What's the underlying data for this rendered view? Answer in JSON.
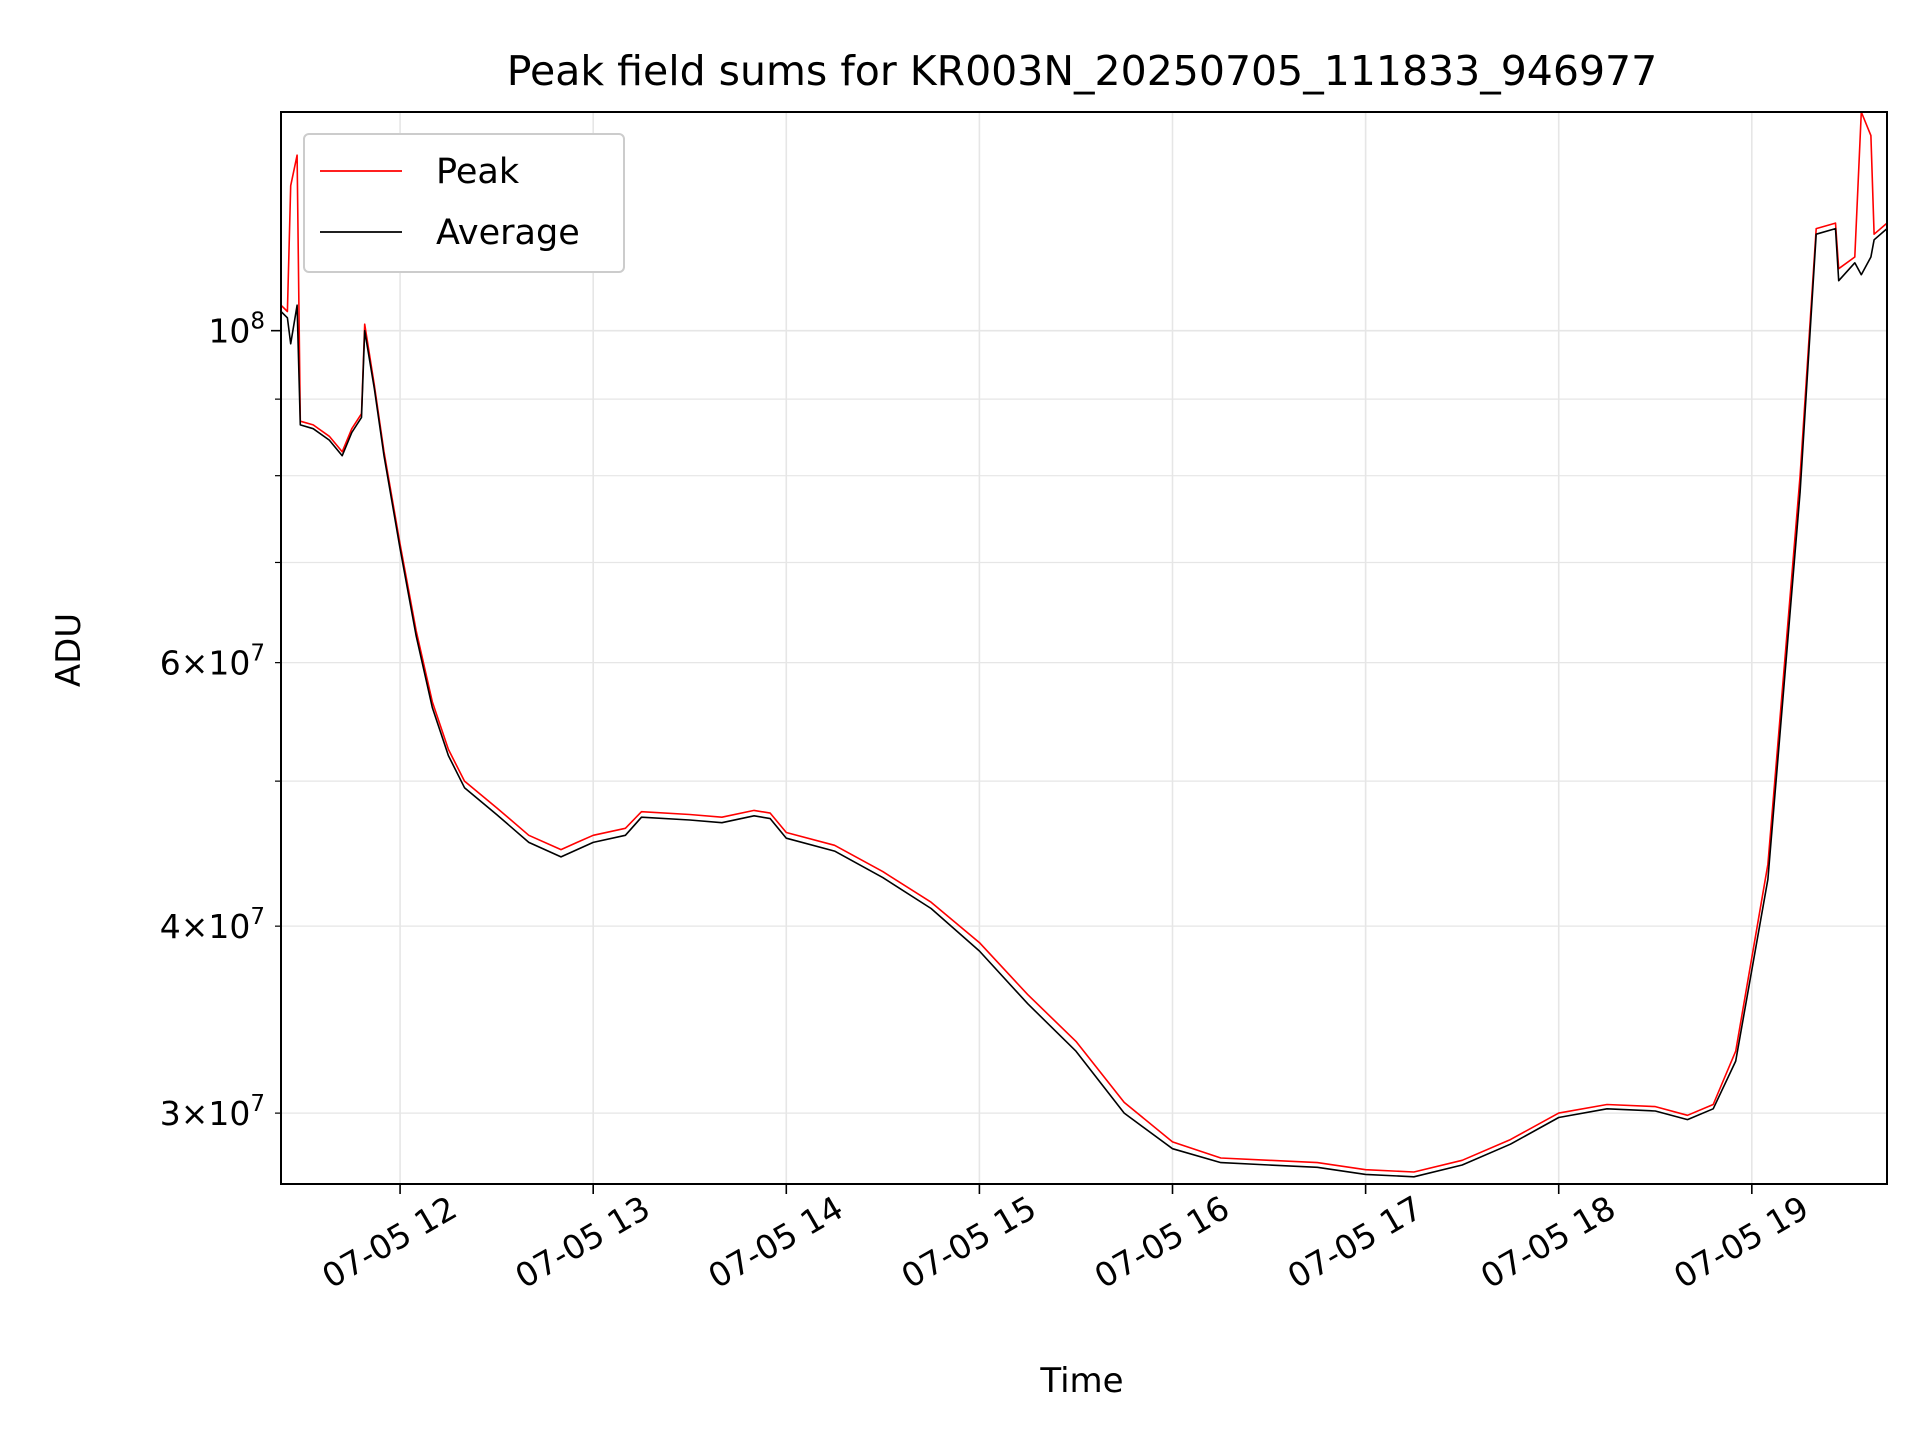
{
  "chart_data": {
    "type": "line",
    "title": "Peak field sums for KR003N_20250705_111833_946977",
    "xlabel": "Time",
    "ylabel": "ADU",
    "yscale": "log",
    "grid": true,
    "legend_position": "top-left",
    "xlim": [
      "2025-07-05 11:23",
      "2025-07-05 19:42"
    ],
    "ylim": [
      26900000,
      140000000
    ],
    "x_ticks": [
      {
        "value": "2025-07-05 12:00",
        "label": "07-05 12"
      },
      {
        "value": "2025-07-05 13:00",
        "label": "07-05 13"
      },
      {
        "value": "2025-07-05 14:00",
        "label": "07-05 14"
      },
      {
        "value": "2025-07-05 15:00",
        "label": "07-05 15"
      },
      {
        "value": "2025-07-05 16:00",
        "label": "07-05 16"
      },
      {
        "value": "2025-07-05 17:00",
        "label": "07-05 17"
      },
      {
        "value": "2025-07-05 18:00",
        "label": "07-05 18"
      },
      {
        "value": "2025-07-05 19:00",
        "label": "07-05 19"
      }
    ],
    "y_major_ticks": [
      {
        "value": 100000000,
        "base": "10",
        "exp": "8"
      }
    ],
    "y_minor_ticks": [
      {
        "value": 30000000,
        "coef": "3",
        "times": "×",
        "base": "10",
        "exp": "7"
      },
      {
        "value": 40000000,
        "coef": "4",
        "times": "×",
        "base": "10",
        "exp": "7"
      },
      {
        "value": 60000000,
        "coef": "6",
        "times": "×",
        "base": "10",
        "exp": "7"
      },
      {
        "value": 50000000
      },
      {
        "value": 70000000
      },
      {
        "value": 80000000
      },
      {
        "value": 90000000
      }
    ],
    "series": [
      {
        "name": "Peak",
        "color": "#ff0000",
        "points": [
          [
            "2025-07-05 11:23",
            104000000
          ],
          [
            "2025-07-05 11:25",
            103000000
          ],
          [
            "2025-07-05 11:26",
            125000000
          ],
          [
            "2025-07-05 11:28",
            131000000
          ],
          [
            "2025-07-05 11:29",
            87000000
          ],
          [
            "2025-07-05 11:33",
            86500000
          ],
          [
            "2025-07-05 11:38",
            85000000
          ],
          [
            "2025-07-05 11:42",
            83000000
          ],
          [
            "2025-07-05 11:45",
            86000000
          ],
          [
            "2025-07-05 11:48",
            88000000
          ],
          [
            "2025-07-05 11:49",
            101000000
          ],
          [
            "2025-07-05 11:52",
            92000000
          ],
          [
            "2025-07-05 11:55",
            83000000
          ],
          [
            "2025-07-05 12:00",
            72000000
          ],
          [
            "2025-07-05 12:05",
            63000000
          ],
          [
            "2025-07-05 12:10",
            56500000
          ],
          [
            "2025-07-05 12:15",
            52500000
          ],
          [
            "2025-07-05 12:20",
            50000000
          ],
          [
            "2025-07-05 12:30",
            48000000
          ],
          [
            "2025-07-05 12:40",
            46000000
          ],
          [
            "2025-07-05 12:50",
            45000000
          ],
          [
            "2025-07-05 12:55",
            45500000
          ],
          [
            "2025-07-05 13:00",
            46000000
          ],
          [
            "2025-07-05 13:10",
            46500000
          ],
          [
            "2025-07-05 13:15",
            47700000
          ],
          [
            "2025-07-05 13:30",
            47500000
          ],
          [
            "2025-07-05 13:40",
            47300000
          ],
          [
            "2025-07-05 13:50",
            47800000
          ],
          [
            "2025-07-05 13:55",
            47600000
          ],
          [
            "2025-07-05 14:00",
            46200000
          ],
          [
            "2025-07-05 14:15",
            45300000
          ],
          [
            "2025-07-05 14:30",
            43500000
          ],
          [
            "2025-07-05 14:45",
            41500000
          ],
          [
            "2025-07-05 15:00",
            39000000
          ],
          [
            "2025-07-05 15:15",
            36000000
          ],
          [
            "2025-07-05 15:30",
            33500000
          ],
          [
            "2025-07-05 15:45",
            30500000
          ],
          [
            "2025-07-05 16:00",
            28700000
          ],
          [
            "2025-07-05 16:15",
            28000000
          ],
          [
            "2025-07-05 16:30",
            27900000
          ],
          [
            "2025-07-05 16:45",
            27800000
          ],
          [
            "2025-07-05 17:00",
            27500000
          ],
          [
            "2025-07-05 17:15",
            27400000
          ],
          [
            "2025-07-05 17:30",
            27900000
          ],
          [
            "2025-07-05 17:45",
            28800000
          ],
          [
            "2025-07-05 18:00",
            30000000
          ],
          [
            "2025-07-05 18:15",
            30400000
          ],
          [
            "2025-07-05 18:30",
            30300000
          ],
          [
            "2025-07-05 18:40",
            29900000
          ],
          [
            "2025-07-05 18:48",
            30400000
          ],
          [
            "2025-07-05 18:55",
            33000000
          ],
          [
            "2025-07-05 19:05",
            44000000
          ],
          [
            "2025-07-05 19:15",
            80000000
          ],
          [
            "2025-07-05 19:20",
            117000000
          ],
          [
            "2025-07-05 19:26",
            118000000
          ],
          [
            "2025-07-05 19:27",
            110000000
          ],
          [
            "2025-07-05 19:32",
            112000000
          ],
          [
            "2025-07-05 19:34",
            140000000
          ],
          [
            "2025-07-05 19:37",
            135000000
          ],
          [
            "2025-07-05 19:38",
            116000000
          ],
          [
            "2025-07-05 19:42",
            118000000
          ]
        ]
      },
      {
        "name": "Average",
        "color": "#000000",
        "points": [
          [
            "2025-07-05 11:23",
            103000000
          ],
          [
            "2025-07-05 11:25",
            102000000
          ],
          [
            "2025-07-05 11:26",
            98000000
          ],
          [
            "2025-07-05 11:28",
            104000000
          ],
          [
            "2025-07-05 11:29",
            86500000
          ],
          [
            "2025-07-05 11:33",
            86000000
          ],
          [
            "2025-07-05 11:38",
            84500000
          ],
          [
            "2025-07-05 11:42",
            82500000
          ],
          [
            "2025-07-05 11:45",
            85500000
          ],
          [
            "2025-07-05 11:48",
            87500000
          ],
          [
            "2025-07-05 11:49",
            100000000
          ],
          [
            "2025-07-05 11:52",
            91500000
          ],
          [
            "2025-07-05 11:55",
            82500000
          ],
          [
            "2025-07-05 12:00",
            71500000
          ],
          [
            "2025-07-05 12:05",
            62500000
          ],
          [
            "2025-07-05 12:10",
            56000000
          ],
          [
            "2025-07-05 12:15",
            52000000
          ],
          [
            "2025-07-05 12:20",
            49500000
          ],
          [
            "2025-07-05 12:30",
            47500000
          ],
          [
            "2025-07-05 12:40",
            45500000
          ],
          [
            "2025-07-05 12:50",
            44500000
          ],
          [
            "2025-07-05 12:55",
            45000000
          ],
          [
            "2025-07-05 13:00",
            45500000
          ],
          [
            "2025-07-05 13:10",
            46000000
          ],
          [
            "2025-07-05 13:15",
            47300000
          ],
          [
            "2025-07-05 13:30",
            47100000
          ],
          [
            "2025-07-05 13:40",
            46900000
          ],
          [
            "2025-07-05 13:50",
            47400000
          ],
          [
            "2025-07-05 13:55",
            47200000
          ],
          [
            "2025-07-05 14:00",
            45800000
          ],
          [
            "2025-07-05 14:15",
            44900000
          ],
          [
            "2025-07-05 14:30",
            43100000
          ],
          [
            "2025-07-05 14:45",
            41100000
          ],
          [
            "2025-07-05 15:00",
            38500000
          ],
          [
            "2025-07-05 15:15",
            35500000
          ],
          [
            "2025-07-05 15:30",
            33000000
          ],
          [
            "2025-07-05 15:45",
            30000000
          ],
          [
            "2025-07-05 16:00",
            28400000
          ],
          [
            "2025-07-05 16:15",
            27800000
          ],
          [
            "2025-07-05 16:30",
            27700000
          ],
          [
            "2025-07-05 16:45",
            27600000
          ],
          [
            "2025-07-05 17:00",
            27300000
          ],
          [
            "2025-07-05 17:15",
            27200000
          ],
          [
            "2025-07-05 17:30",
            27700000
          ],
          [
            "2025-07-05 17:45",
            28600000
          ],
          [
            "2025-07-05 18:00",
            29800000
          ],
          [
            "2025-07-05 18:15",
            30200000
          ],
          [
            "2025-07-05 18:30",
            30100000
          ],
          [
            "2025-07-05 18:40",
            29700000
          ],
          [
            "2025-07-05 18:48",
            30200000
          ],
          [
            "2025-07-05 18:55",
            32500000
          ],
          [
            "2025-07-05 19:05",
            43000000
          ],
          [
            "2025-07-05 19:15",
            78000000
          ],
          [
            "2025-07-05 19:20",
            116000000
          ],
          [
            "2025-07-05 19:26",
            117000000
          ],
          [
            "2025-07-05 19:27",
            108000000
          ],
          [
            "2025-07-05 19:32",
            111000000
          ],
          [
            "2025-07-05 19:34",
            109000000
          ],
          [
            "2025-07-05 19:37",
            112000000
          ],
          [
            "2025-07-05 19:38",
            115000000
          ],
          [
            "2025-07-05 19:42",
            117000000
          ]
        ]
      }
    ]
  }
}
